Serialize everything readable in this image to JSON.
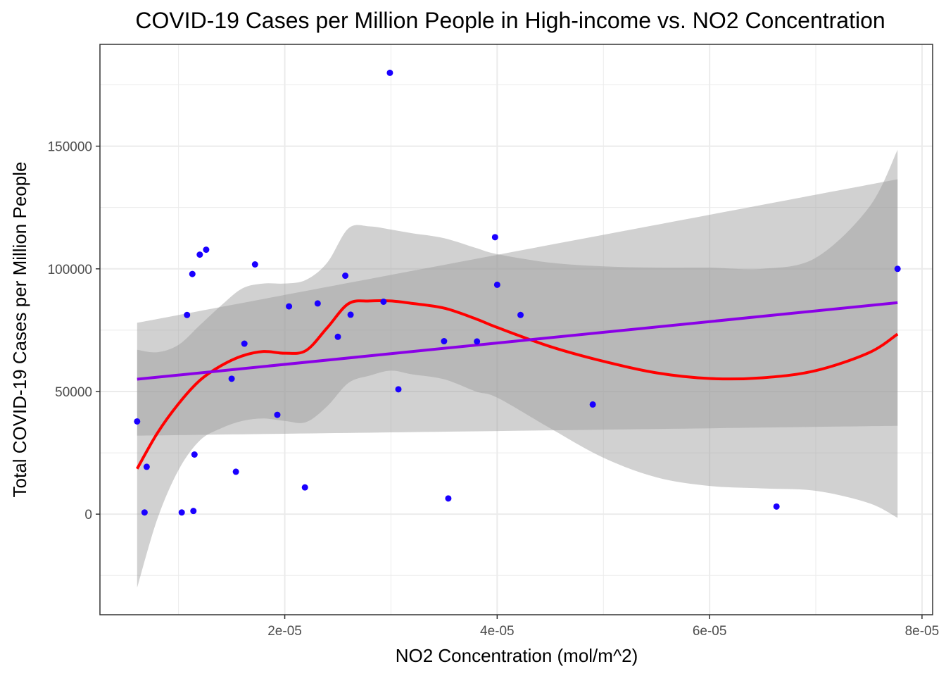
{
  "chart_data": {
    "type": "scatter",
    "title": "COVID-19 Cases per Million People in High-income vs. NO2 Concentration",
    "xlabel": "NO2 Concentration (mol/m^2)",
    "ylabel": "Total COVID-19 Cases per Million People",
    "xlim": [
      2.6e-06,
      8.1e-05
    ],
    "ylim": [
      -41000,
      191500
    ],
    "x_ticks": [
      2e-05,
      4e-05,
      6e-05,
      8e-05
    ],
    "x_tick_labels": [
      "2e-05",
      "4e-05",
      "6e-05",
      "8e-05"
    ],
    "y_ticks": [
      0,
      50000,
      100000,
      150000
    ],
    "y_tick_labels": [
      "0",
      "50000",
      "100000",
      "150000"
    ],
    "grid": true,
    "colors": {
      "points": "#1a00ff",
      "linear_fit": "#8a00e6",
      "loess_fit": "#ff0000",
      "confidence_band": "#999999",
      "grid": "#ebebeb",
      "panel_border": "#333333"
    },
    "points": [
      {
        "x": 6.1e-06,
        "y": 37800
      },
      {
        "x": 6.8e-06,
        "y": 700
      },
      {
        "x": 7e-06,
        "y": 19300
      },
      {
        "x": 1.03e-05,
        "y": 700
      },
      {
        "x": 1.08e-05,
        "y": 81200
      },
      {
        "x": 1.13e-05,
        "y": 97900
      },
      {
        "x": 1.14e-05,
        "y": 1300
      },
      {
        "x": 1.15e-05,
        "y": 24300
      },
      {
        "x": 1.2e-05,
        "y": 105800
      },
      {
        "x": 1.26e-05,
        "y": 107800
      },
      {
        "x": 1.5e-05,
        "y": 55200
      },
      {
        "x": 1.54e-05,
        "y": 17300
      },
      {
        "x": 1.62e-05,
        "y": 69500
      },
      {
        "x": 1.72e-05,
        "y": 101800
      },
      {
        "x": 1.93e-05,
        "y": 40500
      },
      {
        "x": 2.04e-05,
        "y": 84700
      },
      {
        "x": 2.19e-05,
        "y": 10900
      },
      {
        "x": 2.31e-05,
        "y": 85900
      },
      {
        "x": 2.5e-05,
        "y": 72300
      },
      {
        "x": 2.57e-05,
        "y": 97200
      },
      {
        "x": 2.62e-05,
        "y": 81300
      },
      {
        "x": 2.93e-05,
        "y": 86600
      },
      {
        "x": 2.99e-05,
        "y": 179900
      },
      {
        "x": 3.07e-05,
        "y": 50900
      },
      {
        "x": 3.5e-05,
        "y": 70500
      },
      {
        "x": 3.54e-05,
        "y": 6400
      },
      {
        "x": 3.81e-05,
        "y": 70400
      },
      {
        "x": 3.98e-05,
        "y": 112900
      },
      {
        "x": 4e-05,
        "y": 93500
      },
      {
        "x": 4.22e-05,
        "y": 81200
      },
      {
        "x": 4.9e-05,
        "y": 44700
      },
      {
        "x": 6.63e-05,
        "y": 3100
      },
      {
        "x": 7.77e-05,
        "y": 100000
      }
    ],
    "linear_fit": {
      "name": "linear model",
      "x": [
        6.1e-06,
        7.77e-05
      ],
      "y": [
        55000,
        86200
      ],
      "ci_low": [
        32000,
        36000
      ],
      "ci_high": [
        78000,
        136500
      ]
    },
    "loess_fit": {
      "name": "loess smooth",
      "x": [
        6.1e-06,
        8e-06,
        1e-05,
        1.2e-05,
        1.4e-05,
        1.6e-05,
        1.8e-05,
        2e-05,
        2.2e-05,
        2.4e-05,
        2.6e-05,
        2.8e-05,
        3e-05,
        3.2e-05,
        3.5e-05,
        3.8e-05,
        4e-05,
        4.5e-05,
        5e-05,
        5.5e-05,
        6e-05,
        6.5e-05,
        7e-05,
        7.5e-05,
        7.77e-05
      ],
      "y": [
        18500,
        33000,
        45000,
        54500,
        60500,
        64500,
        66300,
        65600,
        66700,
        76000,
        85800,
        86900,
        86900,
        85900,
        84000,
        79600,
        76100,
        68300,
        62300,
        57600,
        55300,
        55600,
        58500,
        65800,
        73400
      ],
      "ci_low": [
        -30000,
        -2000,
        18000,
        30000,
        35000,
        38000,
        39000,
        38000,
        37500,
        44000,
        53500,
        56500,
        58500,
        57000,
        55000,
        50000,
        47500,
        35000,
        23000,
        15000,
        11500,
        10500,
        9500,
        4500,
        -1500
      ],
      "ci_high": [
        67000,
        66000,
        69000,
        77000,
        85000,
        92000,
        94000,
        94000,
        95500,
        102500,
        116500,
        117300,
        116000,
        114500,
        112500,
        108500,
        106000,
        102500,
        101000,
        100500,
        100500,
        100000,
        104500,
        125000,
        148500
      ]
    }
  }
}
